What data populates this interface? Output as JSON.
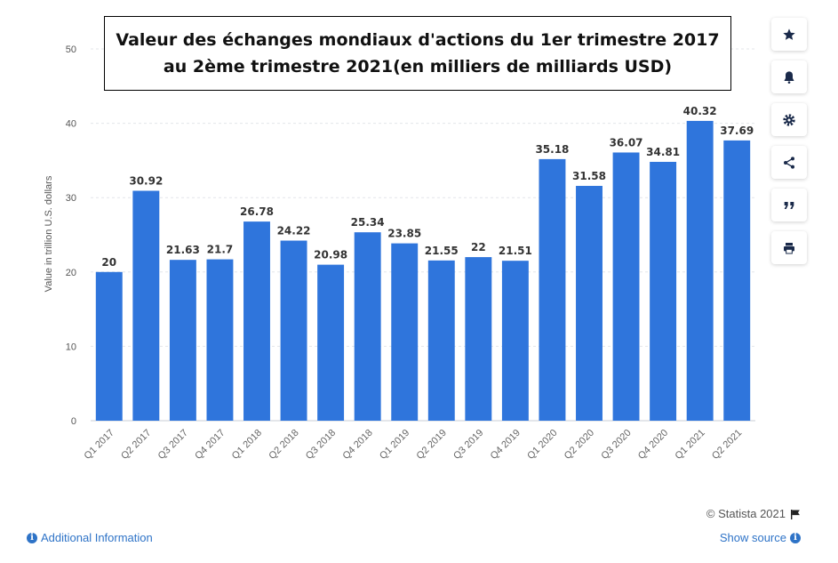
{
  "chart_data": {
    "type": "bar",
    "title_lines": [
      "Valeur des échanges mondiaux d'actions du 1er trimestre 2017",
      "au 2ème trimestre 2021(en milliers de milliards USD)"
    ],
    "ylabel": "Value in trillion U.S. dollars",
    "xlabel": "",
    "ylim": [
      0,
      50
    ],
    "yticks": [
      "0",
      "10",
      "20",
      "30",
      "40",
      "50"
    ],
    "grid": true,
    "bar_color": "#2f75dc",
    "categories": [
      "Q1 2017",
      "Q2 2017",
      "Q3 2017",
      "Q4 2017",
      "Q1 2018",
      "Q2 2018",
      "Q3 2018",
      "Q4 2018",
      "Q1 2019",
      "Q2 2019",
      "Q3 2019",
      "Q4 2019",
      "Q1 2020",
      "Q2 2020",
      "Q3 2020",
      "Q4 2020",
      "Q1 2021",
      "Q2 2021"
    ],
    "values": [
      20,
      30.92,
      21.63,
      21.7,
      26.78,
      24.22,
      20.98,
      25.34,
      23.85,
      21.55,
      22,
      21.51,
      35.18,
      31.58,
      36.07,
      34.81,
      40.32,
      37.69
    ],
    "value_labels": [
      "20",
      "30.92",
      "21.63",
      "21.7",
      "26.78",
      "24.22",
      "20.98",
      "25.34",
      "23.85",
      "21.55",
      "22",
      "21.51",
      "35.18",
      "31.58",
      "36.07",
      "34.81",
      "40.32",
      "37.69"
    ]
  },
  "footer": {
    "credit": "© Statista 2021",
    "additional_info": "Additional Information",
    "show_source": "Show source"
  },
  "sidebar": {
    "icons": [
      "star-icon",
      "bell-icon",
      "gear-icon",
      "share-icon",
      "quote-icon",
      "print-icon"
    ]
  },
  "colors": {
    "link": "#2e73c7",
    "bar": "#2f75dc"
  }
}
